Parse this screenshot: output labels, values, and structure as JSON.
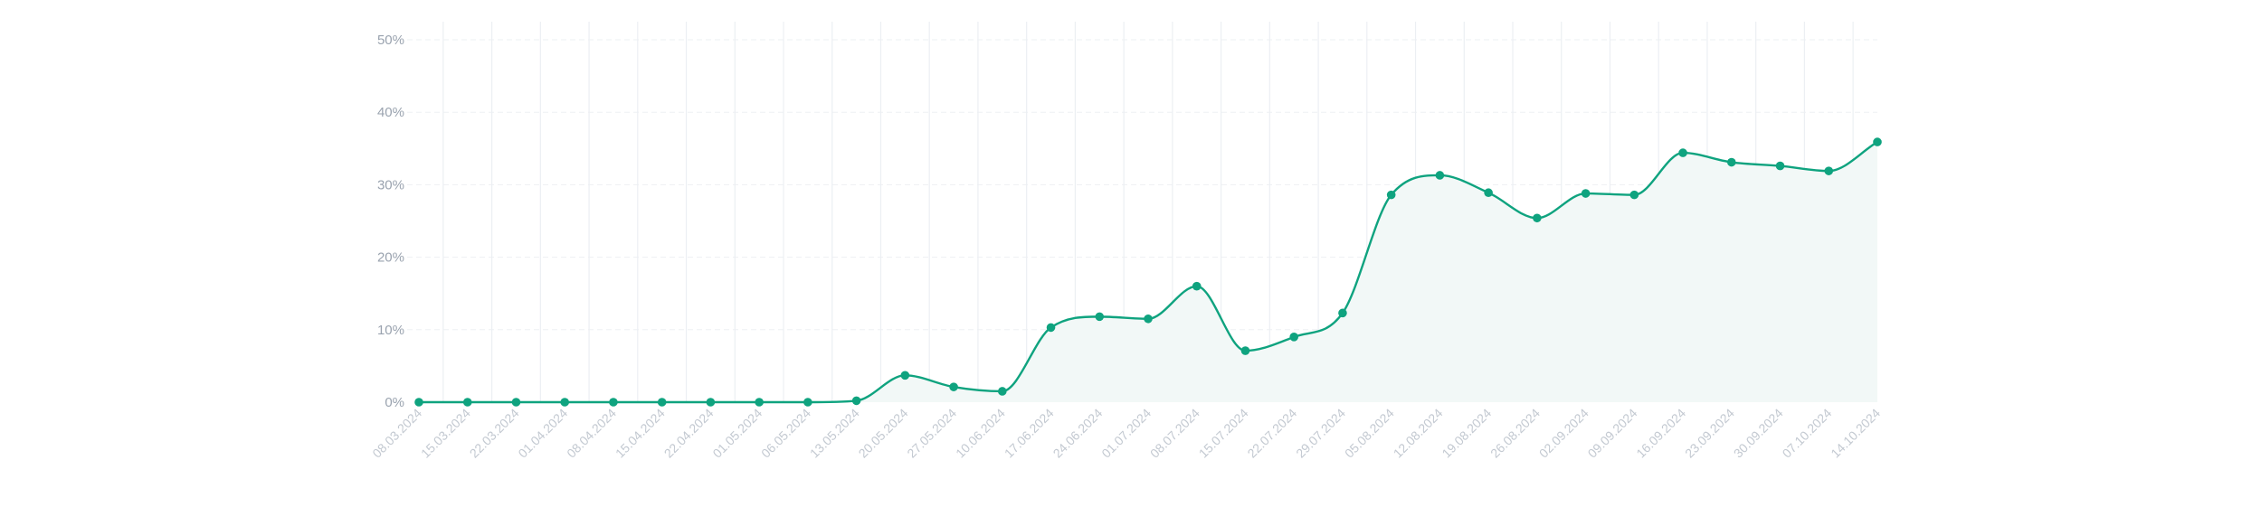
{
  "chart_data": {
    "type": "area",
    "title": "",
    "xlabel": "",
    "ylabel": "",
    "ylim": [
      0,
      50
    ],
    "y_ticks": [
      "0%",
      "10%",
      "20%",
      "30%",
      "40%",
      "50%"
    ],
    "grid": true,
    "smooth": true,
    "colors": {
      "line": "#0fa37f",
      "fill": "#f2f8f7",
      "grid": "#eceff3"
    },
    "x": [
      "08.03.2024",
      "15.03.2024",
      "22.03.2024",
      "01.04.2024",
      "08.04.2024",
      "15.04.2024",
      "22.04.2024",
      "01.05.2024",
      "06.05.2024",
      "13.05.2024",
      "20.05.2024",
      "27.05.2024",
      "10.06.2024",
      "17.06.2024",
      "24.06.2024",
      "01.07.2024",
      "08.07.2024",
      "15.07.2024",
      "22.07.2024",
      "29.07.2024",
      "05.08.2024",
      "12.08.2024",
      "19.08.2024",
      "26.08.2024",
      "02.09.2024",
      "09.09.2024",
      "16.09.2024",
      "23.09.2024",
      "30.09.2024",
      "07.10.2024",
      "14.10.2024"
    ],
    "values": [
      0,
      0,
      0,
      0,
      0,
      0,
      0,
      0,
      0,
      0.2,
      3.7,
      2.1,
      1.5,
      10.3,
      11.8,
      11.5,
      16.0,
      7.1,
      9.0,
      12.3,
      28.6,
      31.3,
      28.9,
      25.4,
      28.8,
      28.6,
      34.4,
      33.1,
      32.6,
      31.9,
      35.9
    ]
  }
}
